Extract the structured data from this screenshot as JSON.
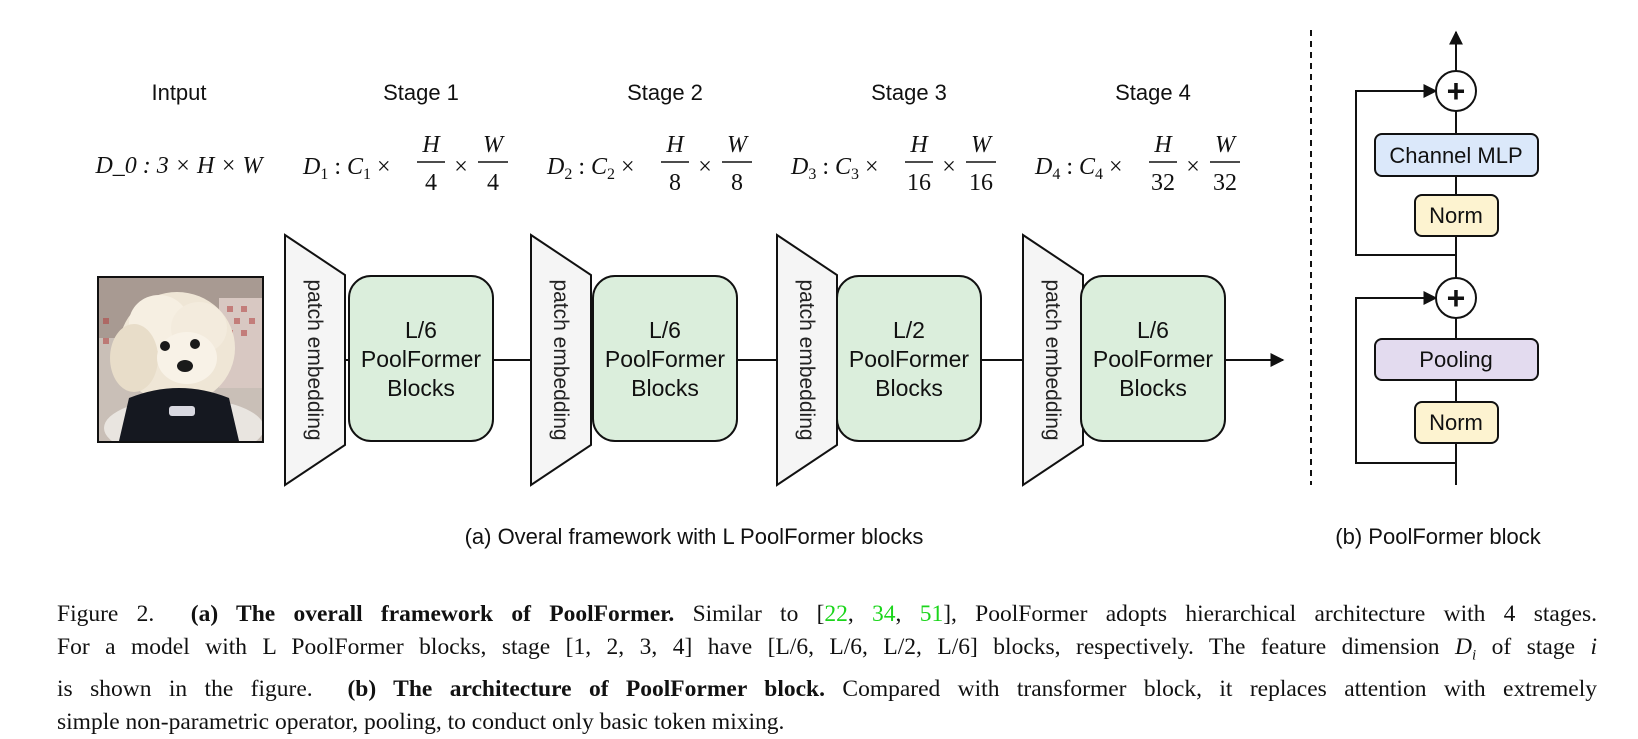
{
  "framework": {
    "input_label": "Intput",
    "input_dim": "D_0 : 3 × H × W",
    "stages": [
      {
        "name": "Stage 1",
        "dim_prefix": "D",
        "dim_sub": "1",
        "channel": "C",
        "channel_sub": "1",
        "h_den": "4",
        "w_den": "4",
        "blocks_count": "L/6",
        "blocks_name": "PoolFormer",
        "blocks_word": "Blocks"
      },
      {
        "name": "Stage 2",
        "dim_prefix": "D",
        "dim_sub": "2",
        "channel": "C",
        "channel_sub": "2",
        "h_den": "8",
        "w_den": "8",
        "blocks_count": "L/6",
        "blocks_name": "PoolFormer",
        "blocks_word": "Blocks"
      },
      {
        "name": "Stage 3",
        "dim_prefix": "D",
        "dim_sub": "3",
        "channel": "C",
        "channel_sub": "3",
        "h_den": "16",
        "w_den": "16",
        "blocks_count": "L/2",
        "blocks_name": "PoolFormer",
        "blocks_word": "Blocks"
      },
      {
        "name": "Stage 4",
        "dim_prefix": "D",
        "dim_sub": "4",
        "channel": "C",
        "channel_sub": "4",
        "h_den": "32",
        "w_den": "32",
        "blocks_count": "L/6",
        "blocks_name": "PoolFormer",
        "blocks_word": "Blocks"
      }
    ],
    "patch_embedding_label": "patch embedding",
    "h_num": "H",
    "w_num": "W",
    "subcaption": "(a) Overal framework with L PoolFormer blocks"
  },
  "block": {
    "channel_mlp": "Channel MLP",
    "norm_top": "Norm",
    "pooling": "Pooling",
    "norm_bottom": "Norm",
    "plus_symbol": "+",
    "subcaption": "(b) PoolFormer block"
  },
  "colors": {
    "stage_fill": "#dbeedc",
    "patch_fill": "#f5f5f5",
    "mlp_fill": "#dbe8fa",
    "norm_fill": "#fdf3d0",
    "pooling_fill": "#e3dbef",
    "citation": "#1bd51b"
  },
  "caption": {
    "figure_label": "Figure 2.",
    "a_title": "(a) The overall framework of PoolFormer.",
    "a_text_1": "Similar to [",
    "cite_1": "22",
    "cite_2": "34",
    "cite_3": "51",
    "a_text_2": "], PoolFormer adopts hierarchical architecture with 4 stages.",
    "line2": "For a model with L PoolFormer blocks, stage [1, 2, 3, 4] have [L/6, L/6, L/2, L/6] blocks, respectively. The feature dimension",
    "line2_var": "D",
    "line2_var_sub": "i",
    "line2_mid": "of stage",
    "line2_i": "i",
    "line3_text": "is shown in the figure.",
    "b_title": "(b) The architecture of PoolFormer block.",
    "b_text_1": "Compared with transformer block, it replaces attention with extremely",
    "line4": "simple non-parametric operator, pooling, to conduct only basic token mixing."
  }
}
